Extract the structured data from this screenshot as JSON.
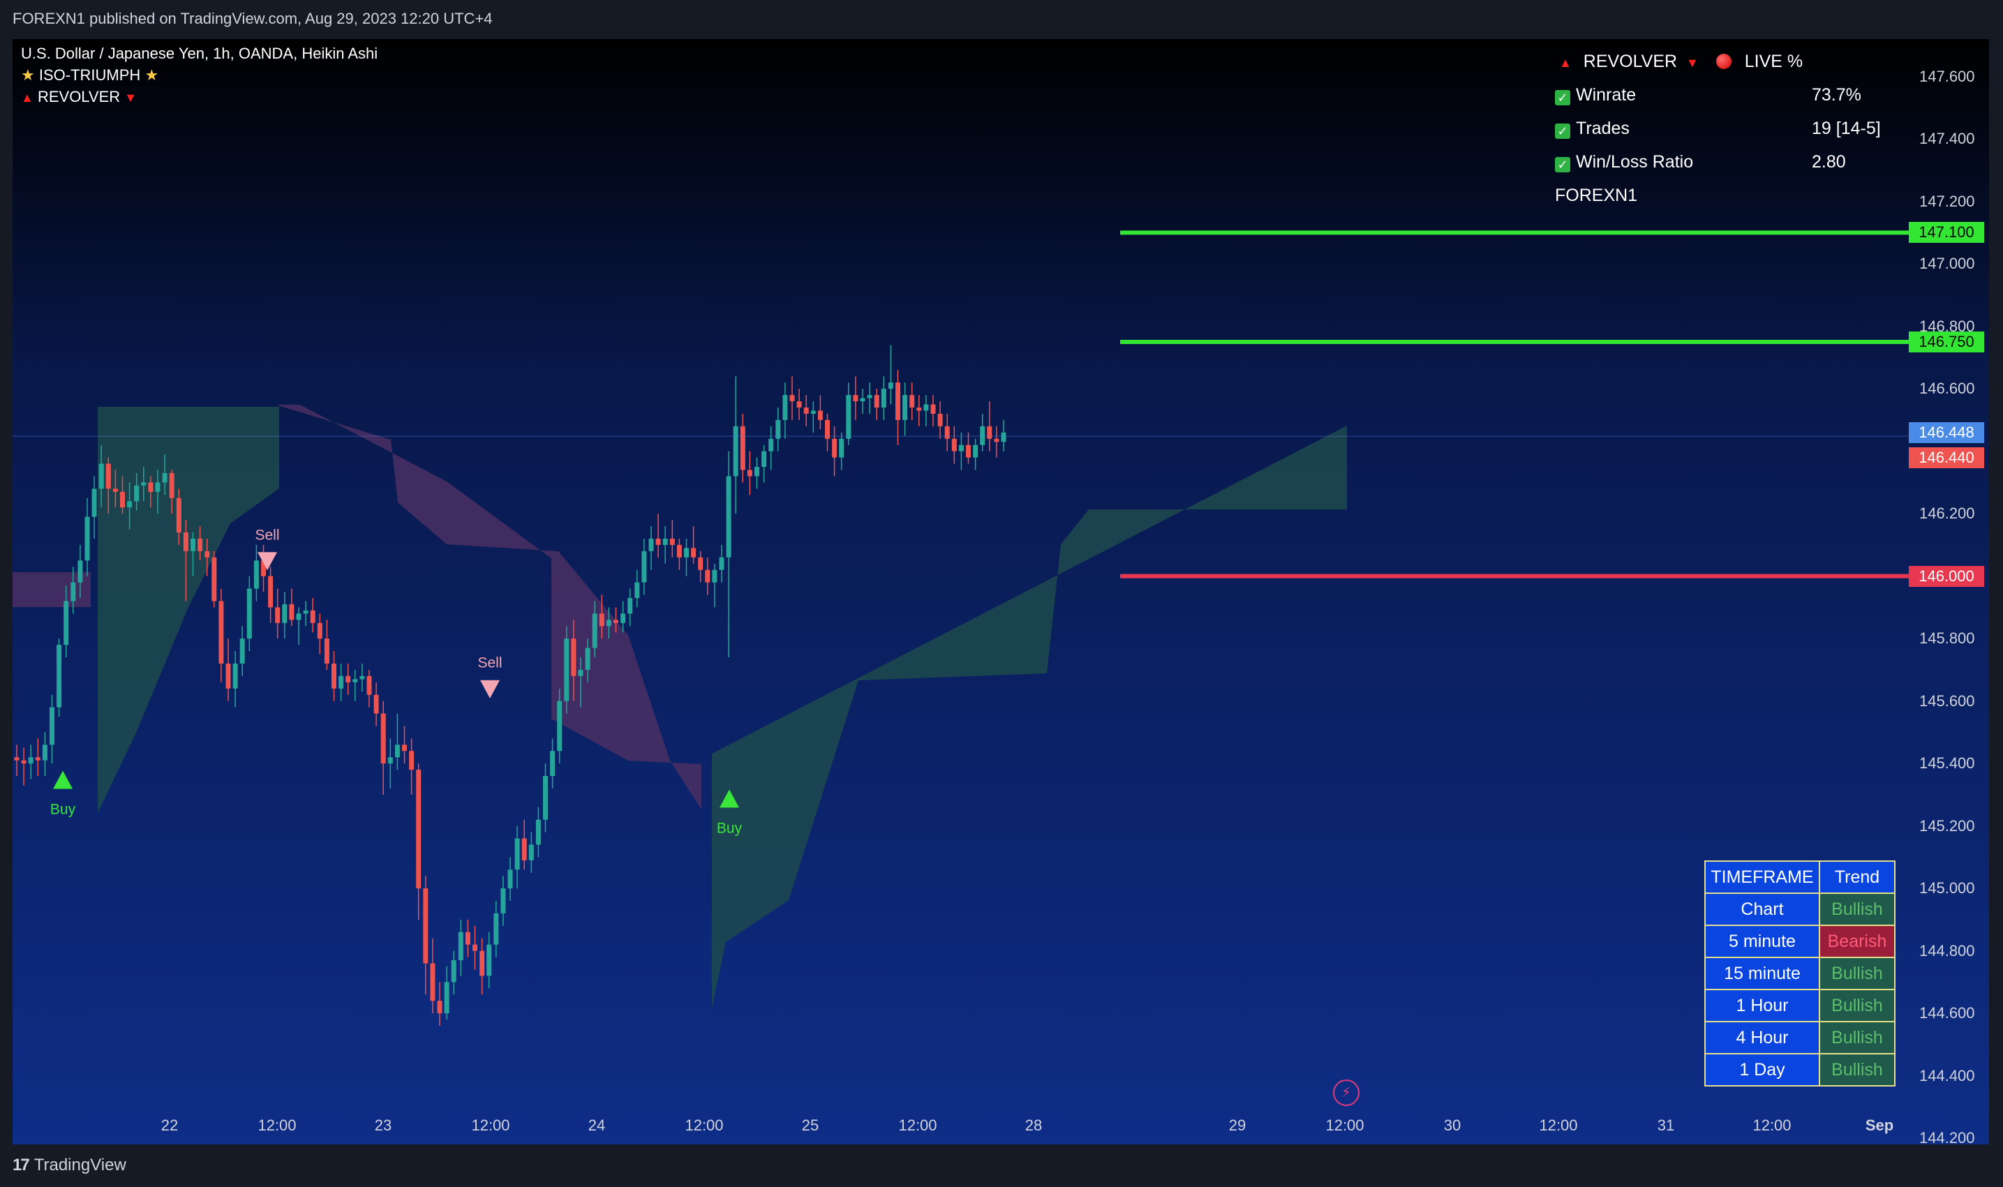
{
  "header": {
    "publisher_text": "FOREXN1 published on TradingView.com, Aug 29, 2023 12:20 UTC+4"
  },
  "footer": {
    "logo_text": "TradingView"
  },
  "legend": {
    "symbol_line": "U.S. Dollar / Japanese Yen, 1h, OANDA, Heikin Ashi",
    "indicator1": "ISO-TRIUMPH",
    "indicator2": "REVOLVER"
  },
  "stats_panel": {
    "title": "REVOLVER",
    "live_label": "LIVE %",
    "rows": [
      {
        "label": "Winrate",
        "value": "73.7%"
      },
      {
        "label": "Trades",
        "value": "19 [14-5]"
      },
      {
        "label": "Win/Loss Ratio",
        "value": "2.80"
      }
    ],
    "author": "FOREXN1"
  },
  "trend_table": {
    "headers": [
      "TIMEFRAME",
      "Trend"
    ],
    "rows": [
      {
        "timeframe": "Chart",
        "trend": "Bullish"
      },
      {
        "timeframe": "5 minute",
        "trend": "Bearish"
      },
      {
        "timeframe": "15 minute",
        "trend": "Bullish"
      },
      {
        "timeframe": "1 Hour",
        "trend": "Bullish"
      },
      {
        "timeframe": "4 Hour",
        "trend": "Bullish"
      },
      {
        "timeframe": "1 Day",
        "trend": "Bullish"
      }
    ]
  },
  "colors": {
    "bull_candle": "#26a69a",
    "bear_candle": "#ef5350",
    "tp_line": "#33e633",
    "sl_line": "#e8384f",
    "bull_zone": "#1d4a4e",
    "bear_zone": "#4a2f63",
    "buy_signal": "#39e639",
    "sell_signal": "#f4a6b3"
  },
  "chart_data": {
    "type": "candlestick",
    "symbol": "U.S. Dollar / Japanese Yen",
    "interval": "1h",
    "style": "Heikin Ashi",
    "ylim": [
      144.18,
      147.72
    ],
    "y_ticks": [
      "147.600",
      "147.400",
      "147.200",
      "147.000",
      "146.800",
      "146.600",
      "146.200",
      "145.800",
      "145.600",
      "145.400",
      "145.200",
      "145.000",
      "144.800",
      "144.600",
      "144.400",
      "144.200"
    ],
    "x_ticks": [
      "22",
      "12:00",
      "23",
      "12:00",
      "24",
      "12:00",
      "25",
      "12:00",
      "28",
      "29",
      "12:00",
      "30",
      "12:00",
      "31",
      "12:00",
      "Sep"
    ],
    "price_levels": [
      {
        "label": "147.100",
        "value": 147.1,
        "kind": "take-profit"
      },
      {
        "label": "146.750",
        "value": 146.75,
        "kind": "take-profit"
      },
      {
        "label": "146.000",
        "value": 146.0,
        "kind": "stop-loss"
      }
    ],
    "current_price": {
      "bid": "146.448",
      "ask": "146.440",
      "bid_value": 146.448,
      "ask_value": 146.44
    },
    "signals": [
      {
        "type": "Buy",
        "x": "Aug 21 19:00",
        "price": 145.35
      },
      {
        "type": "Sell",
        "x": "Aug 22 12:00",
        "price": 146.05
      },
      {
        "type": "Sell",
        "x": "Aug 23 11:00",
        "price": 145.64
      },
      {
        "type": "Buy",
        "x": "Aug 24 12:00",
        "price": 145.29
      }
    ],
    "signal_labels": {
      "buy": "Buy",
      "sell": "Sell"
    },
    "candles": [
      {
        "o": 145.42,
        "h": 145.46,
        "l": 145.36,
        "c": 145.41
      },
      {
        "o": 145.41,
        "h": 145.45,
        "l": 145.33,
        "c": 145.4
      },
      {
        "o": 145.4,
        "h": 145.46,
        "l": 145.35,
        "c": 145.42
      },
      {
        "o": 145.42,
        "h": 145.48,
        "l": 145.36,
        "c": 145.41
      },
      {
        "o": 145.41,
        "h": 145.5,
        "l": 145.36,
        "c": 145.46
      },
      {
        "o": 145.46,
        "h": 145.62,
        "l": 145.4,
        "c": 145.58
      },
      {
        "o": 145.58,
        "h": 145.8,
        "l": 145.55,
        "c": 145.78
      },
      {
        "o": 145.78,
        "h": 145.97,
        "l": 145.74,
        "c": 145.92
      },
      {
        "o": 145.92,
        "h": 146.03,
        "l": 145.88,
        "c": 145.98
      },
      {
        "o": 145.98,
        "h": 146.1,
        "l": 145.93,
        "c": 146.05
      },
      {
        "o": 146.05,
        "h": 146.25,
        "l": 146.0,
        "c": 146.19
      },
      {
        "o": 146.19,
        "h": 146.32,
        "l": 146.12,
        "c": 146.28
      },
      {
        "o": 146.28,
        "h": 146.42,
        "l": 146.22,
        "c": 146.36
      },
      {
        "o": 146.36,
        "h": 146.38,
        "l": 146.2,
        "c": 146.28
      },
      {
        "o": 146.28,
        "h": 146.34,
        "l": 146.22,
        "c": 146.27
      },
      {
        "o": 146.27,
        "h": 146.32,
        "l": 146.2,
        "c": 146.22
      },
      {
        "o": 146.22,
        "h": 146.3,
        "l": 146.15,
        "c": 146.24
      },
      {
        "o": 146.24,
        "h": 146.33,
        "l": 146.21,
        "c": 146.29
      },
      {
        "o": 146.29,
        "h": 146.35,
        "l": 146.24,
        "c": 146.3
      },
      {
        "o": 146.3,
        "h": 146.32,
        "l": 146.22,
        "c": 146.27
      },
      {
        "o": 146.27,
        "h": 146.34,
        "l": 146.2,
        "c": 146.3
      },
      {
        "o": 146.3,
        "h": 146.39,
        "l": 146.26,
        "c": 146.33
      },
      {
        "o": 146.33,
        "h": 146.34,
        "l": 146.2,
        "c": 146.25
      },
      {
        "o": 146.25,
        "h": 146.28,
        "l": 146.1,
        "c": 146.14
      },
      {
        "o": 146.14,
        "h": 146.18,
        "l": 145.92,
        "c": 146.08
      },
      {
        "o": 146.08,
        "h": 146.14,
        "l": 146.0,
        "c": 146.12
      },
      {
        "o": 146.12,
        "h": 146.16,
        "l": 146.05,
        "c": 146.08
      },
      {
        "o": 146.08,
        "h": 146.12,
        "l": 146.0,
        "c": 146.06
      },
      {
        "o": 146.06,
        "h": 146.08,
        "l": 145.9,
        "c": 145.92
      },
      {
        "o": 145.92,
        "h": 145.96,
        "l": 145.66,
        "c": 145.72
      },
      {
        "o": 145.72,
        "h": 145.8,
        "l": 145.6,
        "c": 145.64
      },
      {
        "o": 145.64,
        "h": 145.76,
        "l": 145.58,
        "c": 145.72
      },
      {
        "o": 145.72,
        "h": 145.84,
        "l": 145.68,
        "c": 145.8
      },
      {
        "o": 145.8,
        "h": 146.0,
        "l": 145.76,
        "c": 145.96
      },
      {
        "o": 145.96,
        "h": 146.1,
        "l": 145.92,
        "c": 146.05
      },
      {
        "o": 146.05,
        "h": 146.1,
        "l": 145.95,
        "c": 146.0
      },
      {
        "o": 146.0,
        "h": 146.03,
        "l": 145.85,
        "c": 145.9
      },
      {
        "o": 145.9,
        "h": 145.96,
        "l": 145.8,
        "c": 145.85
      },
      {
        "o": 145.85,
        "h": 145.95,
        "l": 145.8,
        "c": 145.91
      },
      {
        "o": 145.91,
        "h": 145.96,
        "l": 145.84,
        "c": 145.86
      },
      {
        "o": 145.86,
        "h": 145.9,
        "l": 145.78,
        "c": 145.88
      },
      {
        "o": 145.88,
        "h": 145.92,
        "l": 145.84,
        "c": 145.89
      },
      {
        "o": 145.89,
        "h": 145.93,
        "l": 145.82,
        "c": 145.85
      },
      {
        "o": 145.85,
        "h": 145.88,
        "l": 145.75,
        "c": 145.8
      },
      {
        "o": 145.8,
        "h": 145.86,
        "l": 145.7,
        "c": 145.72
      },
      {
        "o": 145.72,
        "h": 145.76,
        "l": 145.6,
        "c": 145.64
      },
      {
        "o": 145.64,
        "h": 145.72,
        "l": 145.6,
        "c": 145.68
      },
      {
        "o": 145.68,
        "h": 145.72,
        "l": 145.62,
        "c": 145.66
      },
      {
        "o": 145.66,
        "h": 145.7,
        "l": 145.6,
        "c": 145.67
      },
      {
        "o": 145.67,
        "h": 145.72,
        "l": 145.63,
        "c": 145.68
      },
      {
        "o": 145.68,
        "h": 145.7,
        "l": 145.58,
        "c": 145.62
      },
      {
        "o": 145.62,
        "h": 145.66,
        "l": 145.52,
        "c": 145.56
      },
      {
        "o": 145.56,
        "h": 145.6,
        "l": 145.3,
        "c": 145.4
      },
      {
        "o": 145.4,
        "h": 145.48,
        "l": 145.32,
        "c": 145.42
      },
      {
        "o": 145.42,
        "h": 145.56,
        "l": 145.38,
        "c": 145.46
      },
      {
        "o": 145.46,
        "h": 145.52,
        "l": 145.4,
        "c": 145.44
      },
      {
        "o": 145.44,
        "h": 145.48,
        "l": 145.3,
        "c": 145.38
      },
      {
        "o": 145.38,
        "h": 145.4,
        "l": 144.9,
        "c": 145.0
      },
      {
        "o": 145.0,
        "h": 145.04,
        "l": 144.66,
        "c": 144.76
      },
      {
        "o": 144.76,
        "h": 144.84,
        "l": 144.6,
        "c": 144.64
      },
      {
        "o": 144.64,
        "h": 144.7,
        "l": 144.56,
        "c": 144.6
      },
      {
        "o": 144.6,
        "h": 144.75,
        "l": 144.58,
        "c": 144.7
      },
      {
        "o": 144.7,
        "h": 144.8,
        "l": 144.66,
        "c": 144.77
      },
      {
        "o": 144.77,
        "h": 144.9,
        "l": 144.72,
        "c": 144.86
      },
      {
        "o": 144.86,
        "h": 144.9,
        "l": 144.78,
        "c": 144.82
      },
      {
        "o": 144.82,
        "h": 144.88,
        "l": 144.74,
        "c": 144.8
      },
      {
        "o": 144.8,
        "h": 144.84,
        "l": 144.66,
        "c": 144.72
      },
      {
        "o": 144.72,
        "h": 144.86,
        "l": 144.68,
        "c": 144.82
      },
      {
        "o": 144.82,
        "h": 144.96,
        "l": 144.78,
        "c": 144.92
      },
      {
        "o": 144.92,
        "h": 145.04,
        "l": 144.88,
        "c": 145.0
      },
      {
        "o": 145.0,
        "h": 145.1,
        "l": 144.96,
        "c": 145.06
      },
      {
        "o": 145.06,
        "h": 145.2,
        "l": 145.0,
        "c": 145.16
      },
      {
        "o": 145.16,
        "h": 145.22,
        "l": 145.06,
        "c": 145.09
      },
      {
        "o": 145.09,
        "h": 145.18,
        "l": 145.05,
        "c": 145.14
      },
      {
        "o": 145.14,
        "h": 145.26,
        "l": 145.1,
        "c": 145.22
      },
      {
        "o": 145.22,
        "h": 145.4,
        "l": 145.18,
        "c": 145.36
      },
      {
        "o": 145.36,
        "h": 145.48,
        "l": 145.32,
        "c": 145.44
      },
      {
        "o": 145.44,
        "h": 145.64,
        "l": 145.4,
        "c": 145.6
      },
      {
        "o": 145.6,
        "h": 145.84,
        "l": 145.56,
        "c": 145.8
      },
      {
        "o": 145.8,
        "h": 145.86,
        "l": 145.6,
        "c": 145.68
      },
      {
        "o": 145.68,
        "h": 145.74,
        "l": 145.58,
        "c": 145.7
      },
      {
        "o": 145.7,
        "h": 145.8,
        "l": 145.66,
        "c": 145.77
      },
      {
        "o": 145.77,
        "h": 145.92,
        "l": 145.74,
        "c": 145.88
      },
      {
        "o": 145.88,
        "h": 145.94,
        "l": 145.8,
        "c": 145.84
      },
      {
        "o": 145.84,
        "h": 145.9,
        "l": 145.8,
        "c": 145.86
      },
      {
        "o": 145.86,
        "h": 145.9,
        "l": 145.82,
        "c": 145.85
      },
      {
        "o": 145.85,
        "h": 145.92,
        "l": 145.82,
        "c": 145.88
      },
      {
        "o": 145.88,
        "h": 145.96,
        "l": 145.84,
        "c": 145.93
      },
      {
        "o": 145.93,
        "h": 146.02,
        "l": 145.9,
        "c": 145.98
      },
      {
        "o": 145.98,
        "h": 146.12,
        "l": 145.94,
        "c": 146.08
      },
      {
        "o": 146.08,
        "h": 146.16,
        "l": 146.02,
        "c": 146.12
      },
      {
        "o": 146.12,
        "h": 146.2,
        "l": 146.06,
        "c": 146.1
      },
      {
        "o": 146.1,
        "h": 146.16,
        "l": 146.04,
        "c": 146.12
      },
      {
        "o": 146.12,
        "h": 146.18,
        "l": 146.06,
        "c": 146.1
      },
      {
        "o": 146.1,
        "h": 146.12,
        "l": 146.02,
        "c": 146.06
      },
      {
        "o": 146.06,
        "h": 146.12,
        "l": 146.0,
        "c": 146.09
      },
      {
        "o": 146.09,
        "h": 146.16,
        "l": 146.04,
        "c": 146.06
      },
      {
        "o": 146.06,
        "h": 146.08,
        "l": 145.98,
        "c": 146.02
      },
      {
        "o": 146.02,
        "h": 146.06,
        "l": 145.94,
        "c": 145.98
      },
      {
        "o": 145.98,
        "h": 146.04,
        "l": 145.9,
        "c": 146.02
      },
      {
        "o": 146.02,
        "h": 146.1,
        "l": 145.98,
        "c": 146.06
      },
      {
        "o": 146.06,
        "h": 146.4,
        "l": 145.74,
        "c": 146.32
      },
      {
        "o": 146.32,
        "h": 146.64,
        "l": 146.2,
        "c": 146.48
      },
      {
        "o": 146.48,
        "h": 146.52,
        "l": 146.3,
        "c": 146.34
      },
      {
        "o": 146.34,
        "h": 146.4,
        "l": 146.26,
        "c": 146.32
      },
      {
        "o": 146.32,
        "h": 146.38,
        "l": 146.28,
        "c": 146.35
      },
      {
        "o": 146.35,
        "h": 146.42,
        "l": 146.3,
        "c": 146.4
      },
      {
        "o": 146.4,
        "h": 146.48,
        "l": 146.34,
        "c": 146.44
      },
      {
        "o": 146.44,
        "h": 146.54,
        "l": 146.4,
        "c": 146.5
      },
      {
        "o": 146.5,
        "h": 146.62,
        "l": 146.44,
        "c": 146.58
      },
      {
        "o": 146.58,
        "h": 146.64,
        "l": 146.5,
        "c": 146.56
      },
      {
        "o": 146.56,
        "h": 146.6,
        "l": 146.5,
        "c": 146.54
      },
      {
        "o": 146.54,
        "h": 146.58,
        "l": 146.48,
        "c": 146.52
      },
      {
        "o": 146.52,
        "h": 146.56,
        "l": 146.46,
        "c": 146.53
      },
      {
        "o": 146.53,
        "h": 146.58,
        "l": 146.47,
        "c": 146.5
      },
      {
        "o": 146.5,
        "h": 146.52,
        "l": 146.4,
        "c": 146.44
      },
      {
        "o": 146.44,
        "h": 146.48,
        "l": 146.32,
        "c": 146.38
      },
      {
        "o": 146.38,
        "h": 146.46,
        "l": 146.34,
        "c": 146.44
      },
      {
        "o": 146.44,
        "h": 146.62,
        "l": 146.42,
        "c": 146.58
      },
      {
        "o": 146.58,
        "h": 146.64,
        "l": 146.5,
        "c": 146.56
      },
      {
        "o": 146.56,
        "h": 146.6,
        "l": 146.52,
        "c": 146.57
      },
      {
        "o": 146.57,
        "h": 146.62,
        "l": 146.52,
        "c": 146.58
      },
      {
        "o": 146.58,
        "h": 146.6,
        "l": 146.5,
        "c": 146.54
      },
      {
        "o": 146.54,
        "h": 146.64,
        "l": 146.5,
        "c": 146.6
      },
      {
        "o": 146.6,
        "h": 146.74,
        "l": 146.55,
        "c": 146.62
      },
      {
        "o": 146.62,
        "h": 146.66,
        "l": 146.42,
        "c": 146.5
      },
      {
        "o": 146.5,
        "h": 146.62,
        "l": 146.45,
        "c": 146.58
      },
      {
        "o": 146.58,
        "h": 146.62,
        "l": 146.5,
        "c": 146.54
      },
      {
        "o": 146.54,
        "h": 146.58,
        "l": 146.48,
        "c": 146.53
      },
      {
        "o": 146.53,
        "h": 146.58,
        "l": 146.48,
        "c": 146.55
      },
      {
        "o": 146.55,
        "h": 146.58,
        "l": 146.48,
        "c": 146.52
      },
      {
        "o": 146.52,
        "h": 146.56,
        "l": 146.44,
        "c": 146.48
      },
      {
        "o": 146.48,
        "h": 146.52,
        "l": 146.4,
        "c": 146.44
      },
      {
        "o": 146.44,
        "h": 146.48,
        "l": 146.36,
        "c": 146.4
      },
      {
        "o": 146.4,
        "h": 146.46,
        "l": 146.34,
        "c": 146.42
      },
      {
        "o": 146.42,
        "h": 146.46,
        "l": 146.36,
        "c": 146.38
      },
      {
        "o": 146.38,
        "h": 146.44,
        "l": 146.34,
        "c": 146.42
      },
      {
        "o": 146.42,
        "h": 146.52,
        "l": 146.4,
        "c": 146.48
      },
      {
        "o": 146.48,
        "h": 146.56,
        "l": 146.4,
        "c": 146.44
      },
      {
        "o": 146.44,
        "h": 146.48,
        "l": 146.38,
        "c": 146.43
      },
      {
        "o": 146.43,
        "h": 146.5,
        "l": 146.4,
        "c": 146.46
      }
    ]
  }
}
